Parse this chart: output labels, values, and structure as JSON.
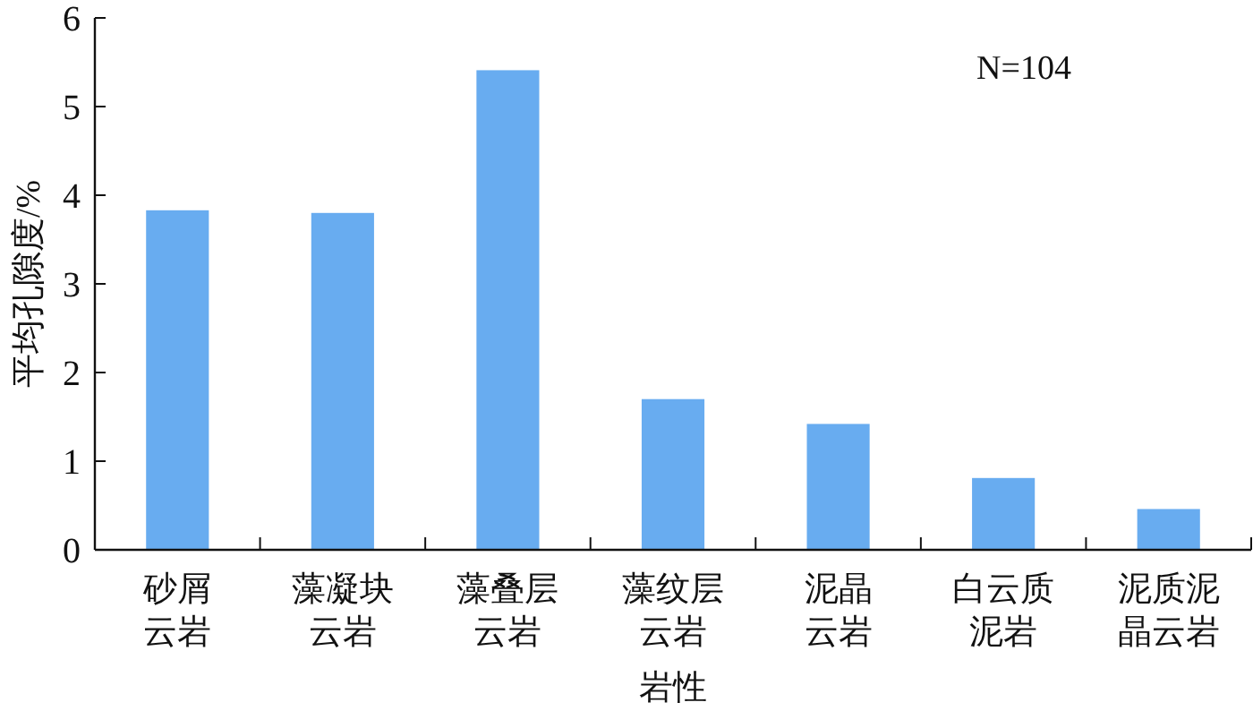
{
  "chart_data": {
    "type": "bar",
    "xlabel": "岩性",
    "ylabel": "平均孔隙度/%",
    "categories": [
      "砂屑云岩",
      "藻凝块云岩",
      "藻叠层云岩",
      "藻纹层云岩",
      "泥晶云岩",
      "白云质泥岩",
      "泥质泥晶云岩"
    ],
    "values": [
      3.83,
      3.8,
      5.41,
      1.7,
      1.42,
      0.81,
      0.46
    ],
    "color": "#68acf0",
    "ylim": [
      0,
      6
    ],
    "yticks": [
      0,
      1,
      2,
      3,
      4,
      5,
      6
    ],
    "annotations": [
      "N=104"
    ]
  }
}
